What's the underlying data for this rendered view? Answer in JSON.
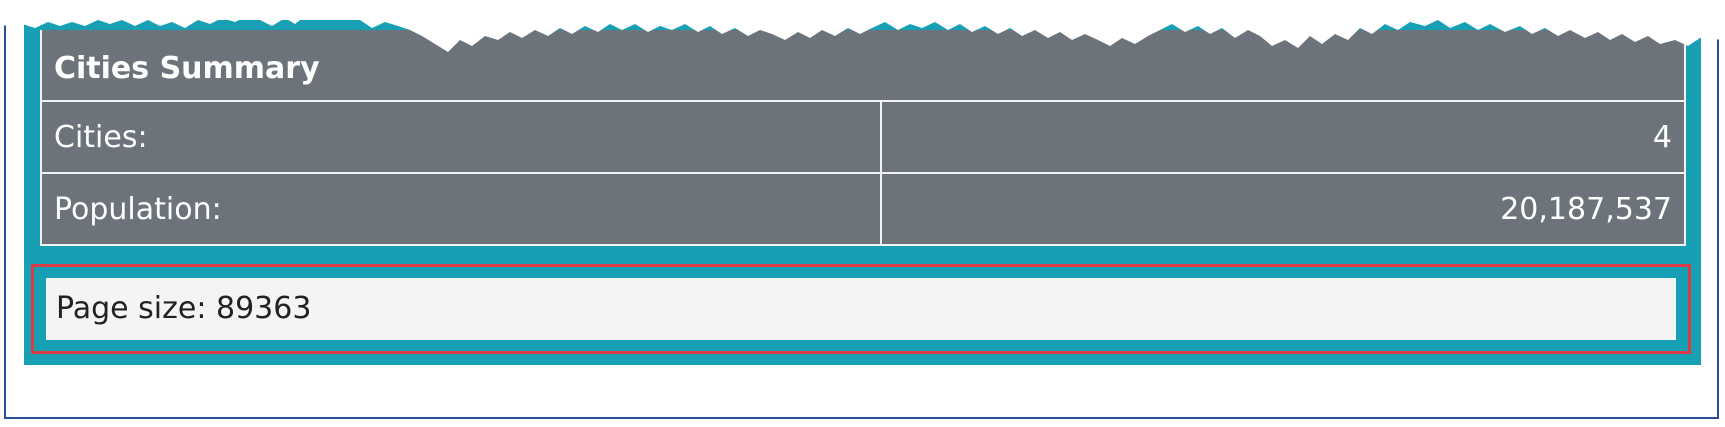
{
  "summary": {
    "title": "Cities Summary",
    "rows": [
      {
        "label": "Cities:",
        "value": "4"
      },
      {
        "label": "Population:",
        "value": "20,187,537"
      }
    ]
  },
  "footer": {
    "page_size_text": "Page size: 89363"
  },
  "colors": {
    "panel_teal": "#17a0b4",
    "table_gray": "#6c737b",
    "highlight_red": "#dc3c46",
    "frame_blue": "#2c4e9a"
  }
}
